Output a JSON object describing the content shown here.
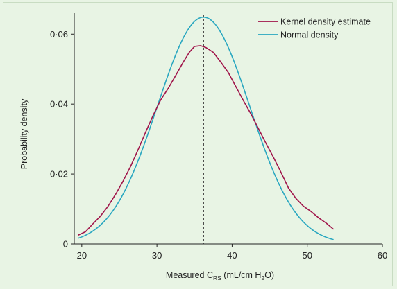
{
  "chart_data": {
    "type": "line",
    "xlabel": {
      "main": "Measured C",
      "sub": "RS",
      "tail1": " (mL/cm H",
      "sub2": "2",
      "tail2": "O)"
    },
    "ylabel": "Probability density",
    "xlim": [
      19,
      60
    ],
    "ylim": [
      0,
      0.066
    ],
    "x_ticks": [
      20,
      30,
      40,
      50,
      60
    ],
    "x_tick_labels": [
      "20",
      "30",
      "40",
      "50",
      "60"
    ],
    "y_ticks": [
      0,
      0.02,
      0.04,
      0.06
    ],
    "y_tick_labels": [
      "0",
      "0·02",
      "0·04",
      "0·06"
    ],
    "legend_position": "top-right",
    "reference_line_x": 36.2,
    "series": [
      {
        "name": "Kernel density estimate",
        "color": "#a0154a",
        "x": [
          19.5,
          20.5,
          21.5,
          22.5,
          23.5,
          24.5,
          25.5,
          26.5,
          27.5,
          28.5,
          29.5,
          30.5,
          31.5,
          32.5,
          33.5,
          34.3,
          35.0,
          35.8,
          36.5,
          37.5,
          38.5,
          39.5,
          40.5,
          41.5,
          42.5,
          43.5,
          44.5,
          45.5,
          46.5,
          47.5,
          48.5,
          49.5,
          50.5,
          51.5,
          52.5,
          53.5
        ],
        "values": [
          0.0025,
          0.0035,
          0.0058,
          0.008,
          0.0108,
          0.0142,
          0.018,
          0.0222,
          0.027,
          0.032,
          0.0368,
          0.0412,
          0.0445,
          0.0482,
          0.052,
          0.0548,
          0.0565,
          0.0567,
          0.0562,
          0.0548,
          0.052,
          0.049,
          0.045,
          0.041,
          0.0372,
          0.033,
          0.0288,
          0.0248,
          0.0205,
          0.016,
          0.013,
          0.0108,
          0.0093,
          0.0075,
          0.006,
          0.0042
        ]
      },
      {
        "name": "Normal density",
        "color": "#29a7c0",
        "mean": 36.2,
        "sd": 6.15,
        "x_range": [
          19.5,
          53.5
        ]
      }
    ]
  }
}
